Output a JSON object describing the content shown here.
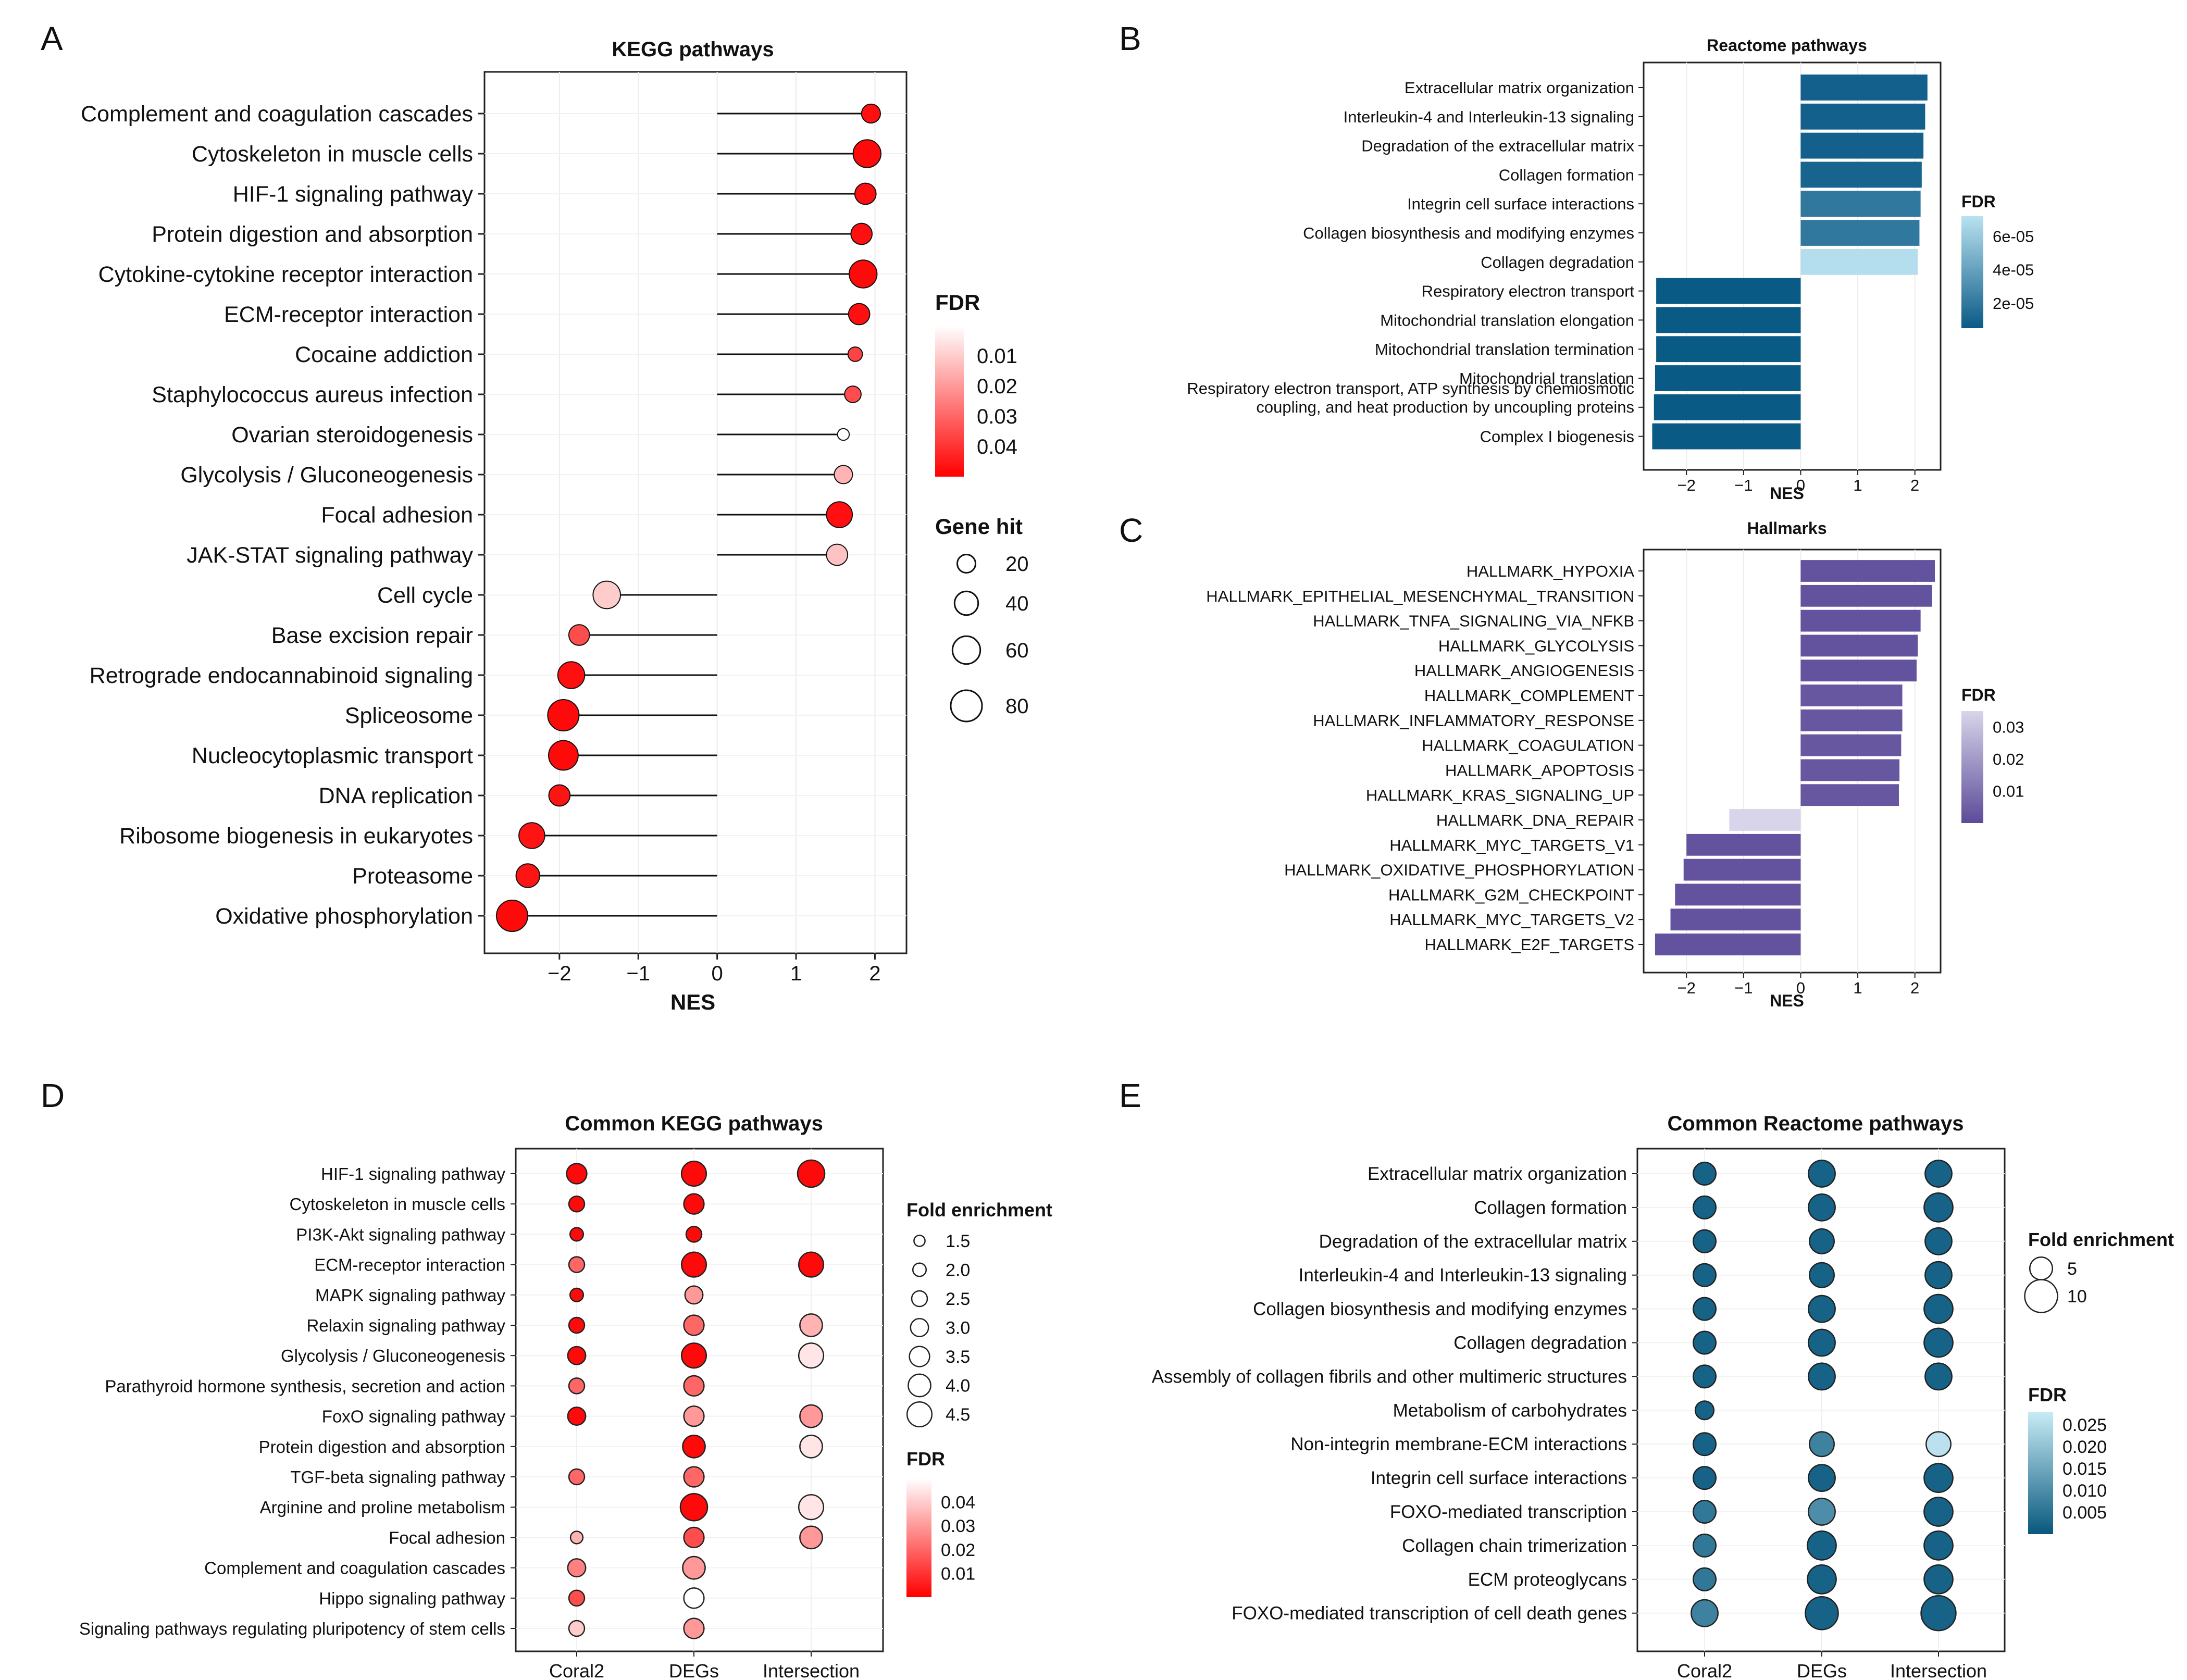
{
  "chart_data": [
    {
      "panel": "A",
      "type": "lollipop",
      "title": "KEGG pathways",
      "xlabel": "NES",
      "xlim": [
        -2.95,
        2.4
      ],
      "xticks": [
        -2,
        -1,
        0,
        1,
        2
      ],
      "xtick_labels": [
        "−2",
        "−1",
        "0",
        "1",
        "2"
      ],
      "categories": [
        "Complement and coagulation cascades",
        "Cytoskeleton in muscle cells",
        "HIF-1 signaling pathway",
        "Protein digestion and absorption",
        "Cytokine-cytokine receptor interaction",
        "ECM-receptor interaction",
        "Cocaine addiction",
        "Staphylococcus aureus infection",
        "Ovarian steroidogenesis",
        "Glycolysis / Gluconeogenesis",
        "Focal adhesion",
        "JAK-STAT signaling pathway",
        "Cell cycle",
        "Base excision repair",
        "Retrograde endocannabinoid signaling",
        "Spliceosome",
        "Nucleocytoplasmic transport",
        "DNA replication",
        "Ribosome biogenesis in eukaryotes",
        "Proteasome",
        "Oxidative phosphorylation"
      ],
      "nes": [
        1.95,
        1.9,
        1.88,
        1.83,
        1.85,
        1.8,
        1.75,
        1.72,
        1.6,
        1.6,
        1.55,
        1.52,
        -1.4,
        -1.75,
        -1.85,
        -1.95,
        -1.95,
        -2.0,
        -2.35,
        -2.4,
        -2.6
      ],
      "fdr": [
        0.003,
        0.002,
        0.003,
        0.003,
        0.002,
        0.003,
        0.013,
        0.015,
        0.05,
        0.035,
        0.003,
        0.038,
        0.04,
        0.015,
        0.003,
        0.002,
        0.002,
        0.004,
        0.004,
        0.004,
        0.002
      ],
      "gene_hit": [
        22,
        60,
        30,
        30,
        60,
        30,
        10,
        15,
        5,
        20,
        50,
        30,
        58,
        28,
        55,
        80,
        70,
        30,
        50,
        40,
        80
      ],
      "color_legend": {
        "title": "FDR",
        "ticks": [
          0.04,
          0.03,
          0.02,
          0.01
        ],
        "labels": [
          "0.04",
          "0.03",
          "0.02",
          "0.01"
        ],
        "range": [
          0.0,
          0.05
        ],
        "low_color": "#ff0000",
        "high_color": "#ffffff"
      },
      "size_legend": {
        "title": "Gene hit",
        "values": [
          20,
          40,
          60,
          80
        ],
        "labels": [
          "20",
          "40",
          "60",
          "80"
        ]
      }
    },
    {
      "panel": "B",
      "type": "bar",
      "orientation": "horizontal",
      "title": "Reactome pathways",
      "xlabel": "NES",
      "xlim": [
        -2.75,
        2.45
      ],
      "xticks": [
        -2,
        -1,
        0,
        1,
        2
      ],
      "xtick_labels": [
        "−2",
        "−1",
        "0",
        "1",
        "2"
      ],
      "categories": [
        "Extracellular matrix organization",
        "Interleukin-4 and Interleukin-13 signaling",
        "Degradation of the extracellular matrix",
        "Collagen formation",
        "Integrin cell surface interactions",
        "Collagen biosynthesis and modifying enzymes",
        "Collagen degradation",
        "Respiratory electron transport",
        "Mitochondrial translation elongation",
        "Mitochondrial translation termination",
        "Mitochondrial translation",
        "Respiratory electron transport, ATP synthesis by chemiosmotic coupling, and heat production by uncoupling proteins",
        "Complex I biogenesis"
      ],
      "values": [
        2.22,
        2.18,
        2.15,
        2.12,
        2.1,
        2.08,
        2.05,
        -2.53,
        -2.53,
        -2.53,
        -2.55,
        -2.57,
        -2.6
      ],
      "fdr": [
        8e-06,
        8e-06,
        8e-06,
        1e-05,
        2e-05,
        2e-05,
        7e-05,
        5e-06,
        5e-06,
        5e-06,
        5e-06,
        5e-06,
        5e-06
      ],
      "color_legend": {
        "title": "FDR",
        "ticks": [
          6e-05,
          4e-05,
          2e-05
        ],
        "labels": [
          "6e-05",
          "4e-05",
          "2e-05"
        ],
        "range": [
          5e-06,
          7.2e-05
        ],
        "low_color": "#0a5a86",
        "high_color": "#b9e2f1"
      }
    },
    {
      "panel": "C",
      "type": "bar",
      "orientation": "horizontal",
      "title": "Hallmarks",
      "xlabel": "NES",
      "xlim": [
        -2.75,
        2.45
      ],
      "xticks": [
        -2,
        -1,
        0,
        1,
        2
      ],
      "xtick_labels": [
        "−2",
        "−1",
        "0",
        "1",
        "2"
      ],
      "categories": [
        "HALLMARK_HYPOXIA",
        "HALLMARK_EPITHELIAL_MESENCHYMAL_TRANSITION",
        "HALLMARK_TNFA_SIGNALING_VIA_NFKB",
        "HALLMARK_GLYCOLYSIS",
        "HALLMARK_ANGIOGENESIS",
        "HALLMARK_COMPLEMENT",
        "HALLMARK_INFLAMMATORY_RESPONSE",
        "HALLMARK_COAGULATION",
        "HALLMARK_APOPTOSIS",
        "HALLMARK_KRAS_SIGNALING_UP",
        "HALLMARK_DNA_REPAIR",
        "HALLMARK_MYC_TARGETS_V1",
        "HALLMARK_OXIDATIVE_PHOSPHORYLATION",
        "HALLMARK_G2M_CHECKPOINT",
        "HALLMARK_MYC_TARGETS_V2",
        "HALLMARK_E2F_TARGETS"
      ],
      "values": [
        2.35,
        2.3,
        2.1,
        2.05,
        2.03,
        1.78,
        1.78,
        1.76,
        1.73,
        1.72,
        -1.25,
        -2.0,
        -2.05,
        -2.2,
        -2.28,
        -2.55
      ],
      "fdr": [
        0.002,
        0.002,
        0.002,
        0.002,
        0.002,
        0.003,
        0.003,
        0.003,
        0.003,
        0.003,
        0.035,
        0.002,
        0.002,
        0.002,
        0.002,
        0.002
      ],
      "color_legend": {
        "title": "FDR",
        "ticks": [
          0.03,
          0.02,
          0.01
        ],
        "labels": [
          "0.03",
          "0.02",
          "0.01"
        ],
        "range": [
          0.0,
          0.035
        ],
        "low_color": "#5c4b99",
        "high_color": "#d8d5ea"
      }
    },
    {
      "panel": "D",
      "type": "scatter",
      "title": "Common KEGG pathways",
      "groups": [
        "Coral2",
        "DEGs",
        "Intersection"
      ],
      "categories": [
        "HIF-1 signaling pathway",
        "Cytoskeleton in muscle cells",
        "PI3K-Akt signaling pathway",
        "ECM-receptor interaction",
        "MAPK signaling pathway",
        "Relaxin signaling pathway",
        "Glycolysis / Gluconeogenesis",
        "Parathyroid hormone synthesis, secretion and action",
        "FoxO signaling pathway",
        "Protein digestion and absorption",
        "TGF-beta signaling pathway",
        "Arginine and proline metabolism",
        "Focal adhesion",
        "Complement and coagulation cascades",
        "Hippo signaling pathway",
        "Signaling pathways regulating pluripotency of stem cells"
      ],
      "fold_enrichment": [
        [
          3.5,
          4.5,
          5.0
        ],
        [
          2.5,
          3.5,
          null
        ],
        [
          2.0,
          2.5,
          null
        ],
        [
          2.5,
          4.5,
          4.5
        ],
        [
          2.0,
          3.0,
          null
        ],
        [
          2.5,
          3.5,
          4.0
        ],
        [
          3.0,
          4.5,
          4.5
        ],
        [
          2.5,
          3.5,
          null
        ],
        [
          3.0,
          3.5,
          4.0
        ],
        [
          null,
          4.0,
          4.0
        ],
        [
          2.5,
          3.5,
          null
        ],
        [
          null,
          5.0,
          4.5
        ],
        [
          1.8,
          3.5,
          4.0
        ],
        [
          3.0,
          4.0,
          null
        ],
        [
          2.5,
          3.5,
          null
        ],
        [
          2.5,
          3.5,
          null
        ]
      ],
      "fdr": [
        [
          0.002,
          0.002,
          0.002
        ],
        [
          0.002,
          0.002,
          null
        ],
        [
          0.002,
          0.002,
          null
        ],
        [
          0.02,
          0.002,
          0.002
        ],
        [
          0.002,
          0.03,
          null
        ],
        [
          0.002,
          0.02,
          0.035
        ],
        [
          0.002,
          0.002,
          0.045
        ],
        [
          0.02,
          0.02,
          null
        ],
        [
          0.002,
          0.03,
          0.03
        ],
        [
          null,
          0.002,
          0.045
        ],
        [
          0.02,
          0.02,
          null
        ],
        [
          null,
          0.002,
          0.045
        ],
        [
          0.035,
          0.015,
          0.03
        ],
        [
          0.025,
          0.03,
          null
        ],
        [
          0.015,
          0.05,
          null
        ],
        [
          0.04,
          0.03,
          null
        ]
      ],
      "size_legend": {
        "title": "Fold enrichment",
        "values": [
          1.5,
          2.0,
          2.5,
          3.0,
          3.5,
          4.0,
          4.5
        ],
        "labels": [
          "1.5",
          "2.0",
          "2.5",
          "3.0",
          "3.5",
          "4.0",
          "4.5"
        ]
      },
      "color_legend": {
        "title": "FDR",
        "ticks": [
          0.04,
          0.03,
          0.02,
          0.01
        ],
        "labels": [
          "0.04",
          "0.03",
          "0.02",
          "0.01"
        ],
        "range": [
          0.0,
          0.05
        ],
        "low_color": "#ff0000",
        "high_color": "#ffffff"
      }
    },
    {
      "panel": "E",
      "type": "scatter",
      "title": "Common Reactome pathways",
      "groups": [
        "Coral2",
        "DEGs",
        "Intersection"
      ],
      "categories": [
        "Extracellular matrix organization",
        "Collagen formation",
        "Degradation of the extracellular matrix",
        "Interleukin-4 and Interleukin-13 signaling",
        "Collagen biosynthesis and modifying enzymes",
        "Collagen degradation",
        "Assembly of collagen fibrils and other multimeric structures",
        "Metabolism of carbohydrates",
        "Non-integrin membrane-ECM interactions",
        "Integrin cell surface interactions",
        "FOXO-mediated transcription",
        "Collagen chain trimerization",
        "ECM proteoglycans",
        "FOXO-mediated transcription of cell death genes"
      ],
      "fold_enrichment": [
        [
          5,
          7,
          7
        ],
        [
          5,
          7,
          8
        ],
        [
          5,
          6,
          7
        ],
        [
          5,
          6,
          7
        ],
        [
          5,
          7,
          8
        ],
        [
          5,
          7,
          8
        ],
        [
          5,
          7,
          7
        ],
        [
          3,
          null,
          null
        ],
        [
          5,
          6,
          6
        ],
        [
          5,
          7,
          8
        ],
        [
          5,
          7,
          8
        ],
        [
          5,
          8,
          8
        ],
        [
          5,
          8,
          8
        ],
        [
          7,
          10,
          11
        ]
      ],
      "fdr": [
        [
          0.002,
          0.002,
          0.002
        ],
        [
          0.002,
          0.002,
          0.002
        ],
        [
          0.002,
          0.002,
          0.002
        ],
        [
          0.002,
          0.002,
          0.002
        ],
        [
          0.002,
          0.002,
          0.002
        ],
        [
          0.002,
          0.002,
          0.002
        ],
        [
          0.002,
          0.002,
          0.002
        ],
        [
          0.002,
          null,
          null
        ],
        [
          0.002,
          0.008,
          0.026
        ],
        [
          0.002,
          0.002,
          0.002
        ],
        [
          0.006,
          0.01,
          0.002
        ],
        [
          0.006,
          0.002,
          0.002
        ],
        [
          0.006,
          0.002,
          0.002
        ],
        [
          0.008,
          0.002,
          0.002
        ]
      ],
      "size_legend": {
        "title": "Fold enrichment",
        "values": [
          5,
          10
        ],
        "labels": [
          "5",
          "10"
        ]
      },
      "color_legend": {
        "title": "FDR",
        "ticks": [
          0.025,
          0.02,
          0.015,
          0.01,
          0.005
        ],
        "labels": [
          "0.025",
          "0.020",
          "0.015",
          "0.010",
          "0.005"
        ],
        "range": [
          0.0,
          0.028
        ],
        "low_color": "#08587e",
        "high_color": "#c8ecf5"
      }
    }
  ]
}
